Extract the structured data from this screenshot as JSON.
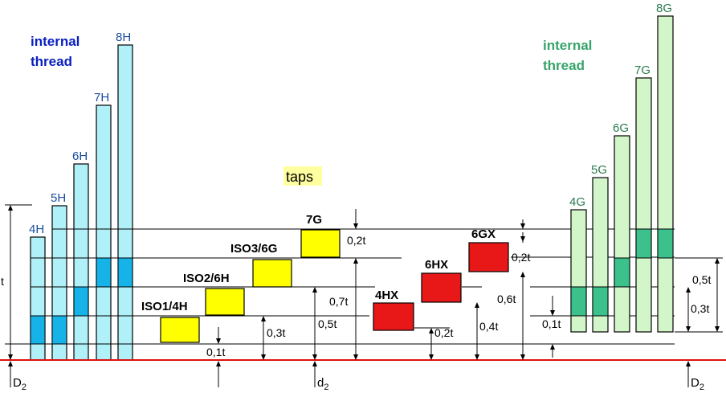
{
  "colors": {
    "h_fill": "#b0f0f8",
    "h_highlight": "#16b3e8",
    "h_label": "#1a4da0",
    "g_fill": "#d2f5c9",
    "g_highlight": "#3cc08c",
    "g_label": "#2a7a4e",
    "tap_yellow": "#ffff00",
    "tap_red": "#e81818",
    "title_blue": "#0a1fc0",
    "title_green": "#37a36b",
    "baseline_red": "#e01010"
  },
  "titles": {
    "left_line1": "internal",
    "left_line2": "thread",
    "right_line1": "internal",
    "right_line2": "thread",
    "taps": "taps"
  },
  "h_bars": [
    {
      "label": "4H"
    },
    {
      "label": "5H"
    },
    {
      "label": "6H"
    },
    {
      "label": "7H"
    },
    {
      "label": "8H"
    }
  ],
  "g_bars": [
    {
      "label": "4G"
    },
    {
      "label": "5G"
    },
    {
      "label": "6G"
    },
    {
      "label": "7G"
    },
    {
      "label": "8G"
    }
  ],
  "taps_yellow": [
    {
      "label": "ISO1/4H"
    },
    {
      "label": "ISO2/6H"
    },
    {
      "label": "ISO3/6G"
    },
    {
      "label": "7G"
    }
  ],
  "taps_red": [
    {
      "label": "4HX"
    },
    {
      "label": "6HX"
    },
    {
      "label": "6GX"
    }
  ],
  "dimensions": {
    "t": "t",
    "d01_left": "0,1t",
    "d03": "0,3t",
    "d05": "0,5t",
    "d07": "0,7t",
    "d02_top": "0,2t",
    "d02_4hx": "0,2t",
    "d04": "0,4t",
    "d06": "0,6t",
    "d02_6gx": "0,2t",
    "d01_right": "0,1t",
    "d03_right": "0,3t",
    "d05_right": "0,5t"
  },
  "axis_labels": {
    "D2_left": "D",
    "D2_left_sub": "2",
    "d2_mid": "d",
    "d2_mid_sub": "2",
    "D2_right": "D",
    "D2_right_sub": "2"
  }
}
